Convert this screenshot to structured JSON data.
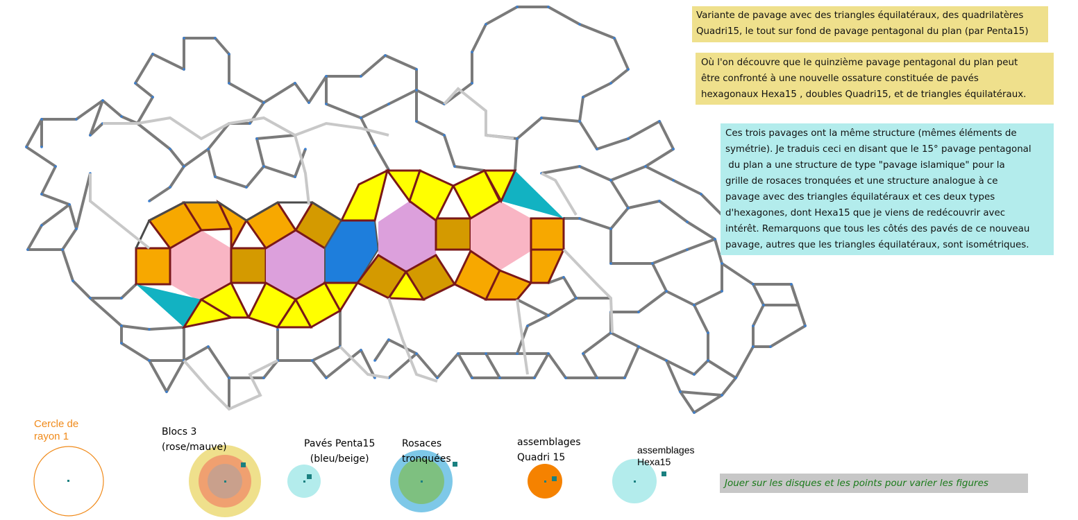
{
  "notes": {
    "note1": [
      "Variante de pavage avec des triangles équilatéraux, des quadrilatères",
      "Quadri15, le tout sur fond de pavage pentagonal du plan (par Penta15)"
    ],
    "note2": [
      "Où l'on découvre que le quinzième pavage pentagonal du plan peut",
      "être confronté à une nouvelle ossature constituée de pavés",
      "hexagonaux Hexa15 , doubles Quadri15, et de triangles équilatéraux."
    ],
    "note3": [
      "Ces trois pavages ont la même structure (mêmes éléments de",
      "symétrie). Je traduis ceci en disant que le 15° pavage pentagonal",
      " du plan a une structure de type \"pavage islamique\" pour la",
      "grille de rosaces tronquées et une structure analogue à ce",
      "pavage avec des triangles équilatéraux et ces deux types",
      "d'hexagones, dont Hexa15 que je viens de redécouvrir avec",
      "intérêt. Remarquons que tous les côtés des pavés de ce nouveau",
      "pavage, autres que les triangles équilatéraux, sont isométriques."
    ]
  },
  "controls": {
    "cercle": [
      "Cercle de",
      "rayon 1"
    ],
    "blocs": [
      "Blocs 3",
      "(rose/mauve)"
    ],
    "penta": [
      "Pavés Penta15",
      "(bleu/beige)"
    ],
    "rosaces": [
      "Rosaces",
      "tronquées"
    ],
    "quadri": [
      "assemblages",
      "Quadri 15"
    ],
    "hexa": [
      "assemblages",
      "Hexa15"
    ]
  },
  "hint": "Jouer sur les  disques et les points pour varier les figures",
  "colors": {
    "background_pentagons": "#7a7a7a",
    "light_edges": "#c8c8c8",
    "yellow_triangles": "#ffff00",
    "orange_quadri": "#f7a800",
    "dark_orange_quadri": "#d49a00",
    "pink_hexa": "#f9b5c4",
    "mauve_hexa": "#dca0dc",
    "teal": "#12b2c2",
    "blue_penta": "#1e7edc",
    "dark_red_edges": "#7a1818",
    "note_yellow": "#efe08c",
    "note_cyan": "#b3ecec",
    "hint_gray": "#c7c7c7",
    "orange_text": "#f08a1a"
  }
}
